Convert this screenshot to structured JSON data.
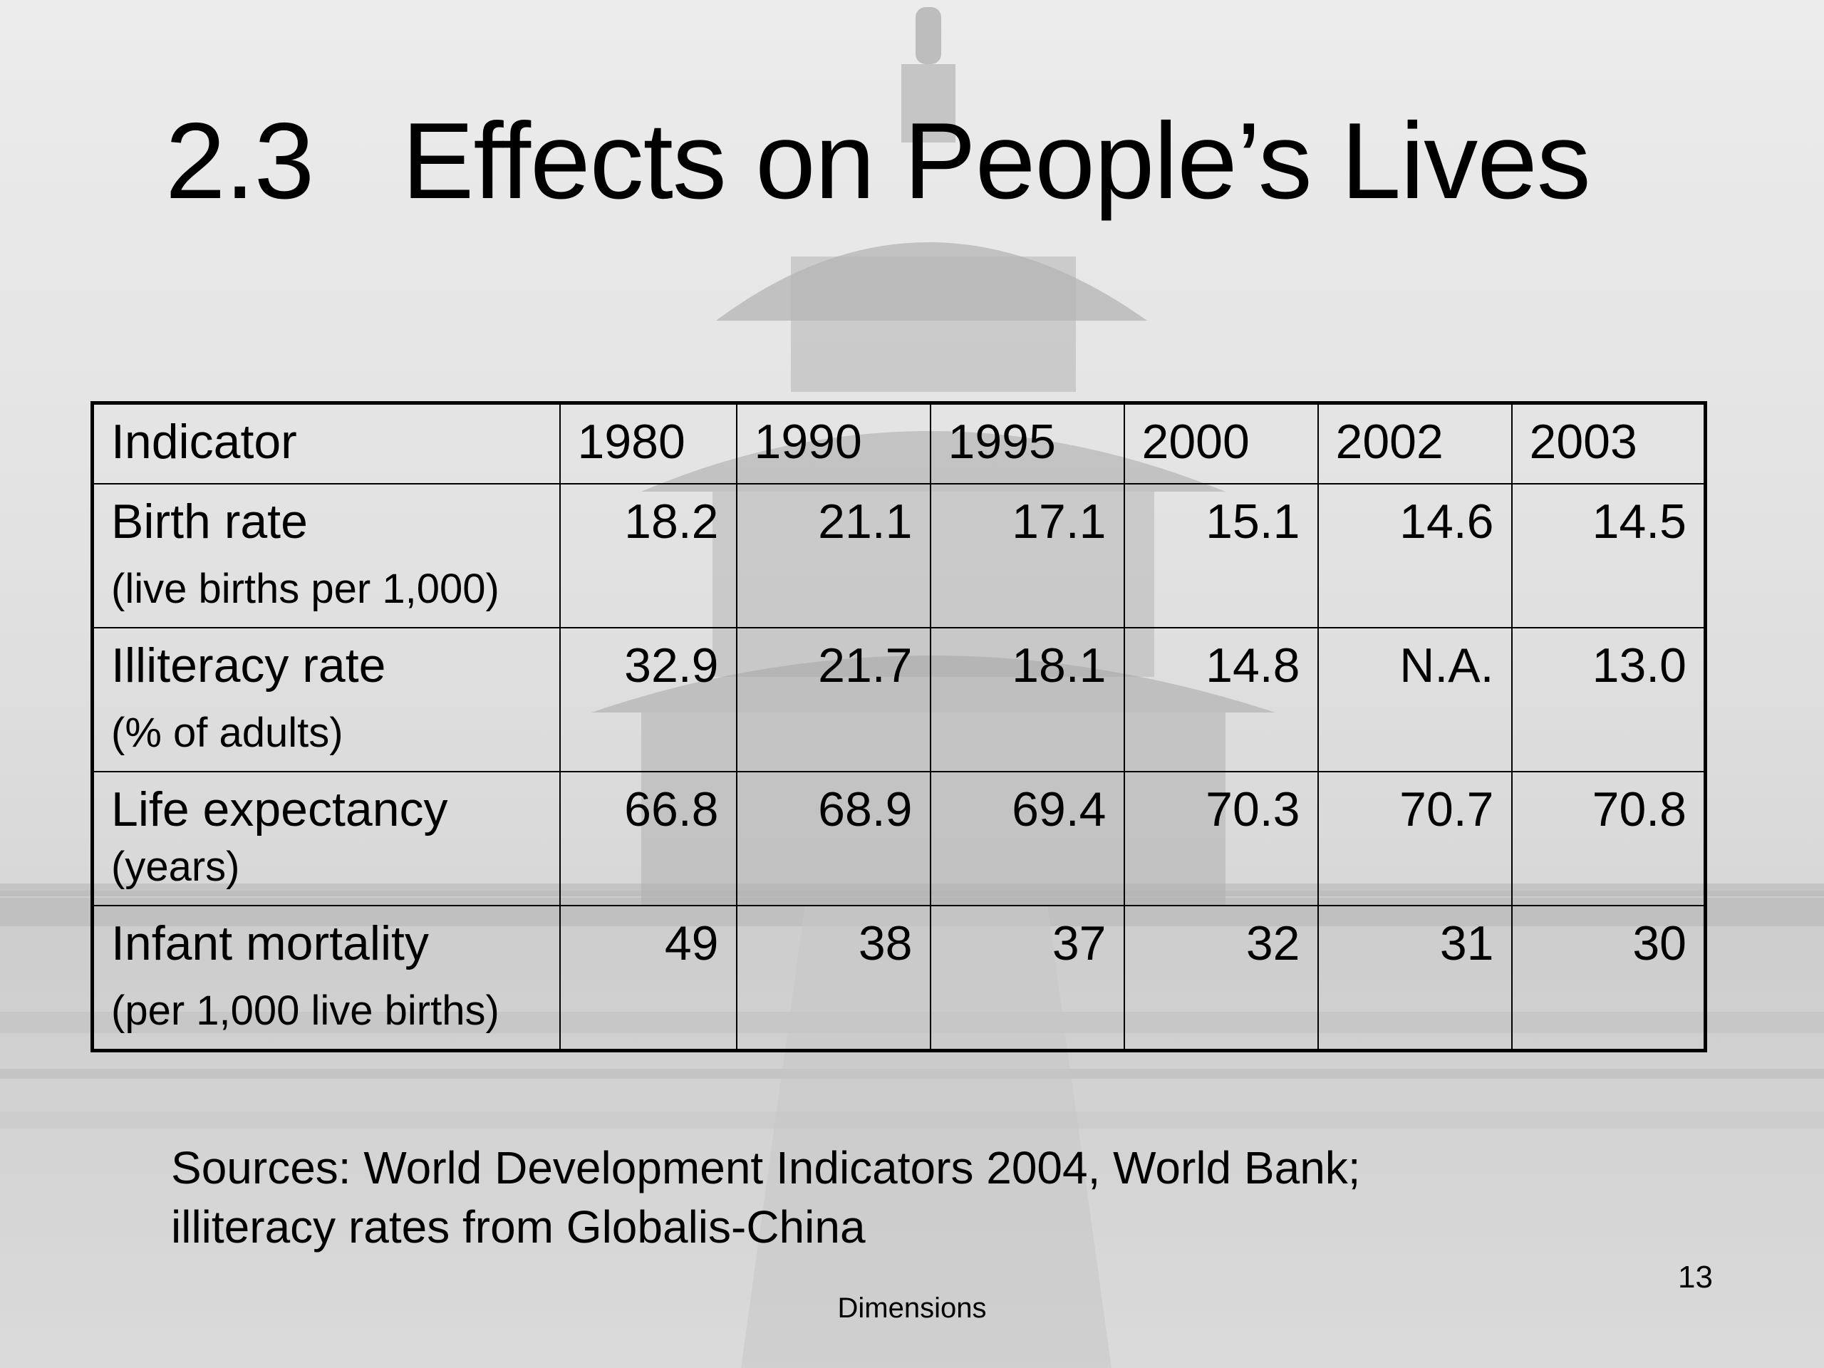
{
  "slide": {
    "title": "2.3   Effects on People’s Lives",
    "table": {
      "headers": [
        "Indicator",
        "1980",
        "1990",
        "1995",
        "2000",
        "2002",
        "2003"
      ],
      "rows": [
        {
          "indicator": "Birth rate",
          "unit": "(live births per 1,000)",
          "values": [
            "18.2",
            "21.1",
            "17.1",
            "15.1",
            "14.6",
            "14.5"
          ]
        },
        {
          "indicator": "Illiteracy rate",
          "unit": "(% of adults)",
          "values": [
            "32.9",
            "21.7",
            "18.1",
            "14.8",
            "N.A.",
            "13.0"
          ]
        },
        {
          "indicator": "Life expectancy",
          "unit": "(years)",
          "values": [
            "66.8",
            "68.9",
            "69.4",
            "70.3",
            "70.7",
            "70.8"
          ]
        },
        {
          "indicator": "Infant mortality",
          "unit": "(per 1,000 live births)",
          "values": [
            "49",
            "38",
            "37",
            "32",
            "31",
            "30"
          ]
        }
      ]
    },
    "sources": {
      "line1": "Sources: World Development Indicators 2004, World Bank;",
      "line2": "illiteracy rates from Globalis-China"
    },
    "page_number": "13",
    "footer": "Dimensions"
  },
  "background": {
    "image": "temple-of-heaven-photo",
    "base_color": "#e4e4e4"
  }
}
